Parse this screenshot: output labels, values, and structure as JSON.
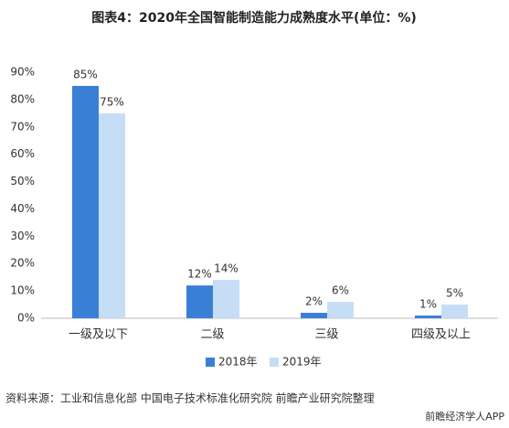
{
  "chart_data": {
    "type": "bar",
    "title": "图表4：2020年全国智能制造能力成熟度水平(单位：%)",
    "categories": [
      "一级及以下",
      "二级",
      "三级",
      "四级及以上"
    ],
    "series": [
      {
        "name": "2018年",
        "color": "#3a7fd6",
        "values": [
          85,
          12,
          2,
          1
        ],
        "value_labels": [
          "85%",
          "12%",
          "2%",
          "1%"
        ]
      },
      {
        "name": "2019年",
        "color": "#c6ddf6",
        "values": [
          75,
          14,
          6,
          5
        ],
        "value_labels": [
          "75%",
          "14%",
          "6%",
          "5%"
        ]
      }
    ],
    "ylim": [
      0,
      90
    ],
    "yticks": [
      {
        "value": 0,
        "label": "0%"
      },
      {
        "value": 10,
        "label": "10%"
      },
      {
        "value": 20,
        "label": "20%"
      },
      {
        "value": 30,
        "label": "30%"
      },
      {
        "value": 40,
        "label": "40%"
      },
      {
        "value": 50,
        "label": "50%"
      },
      {
        "value": 60,
        "label": "60%"
      },
      {
        "value": 70,
        "label": "70%"
      },
      {
        "value": 80,
        "label": "80%"
      },
      {
        "value": 90,
        "label": "90%"
      }
    ],
    "legend": "bottom",
    "source": "资料来源：工业和信息化部 中国电子技术标准化研究院 前瞻产业研究院整理",
    "footer": "前瞻经济学人APP"
  }
}
